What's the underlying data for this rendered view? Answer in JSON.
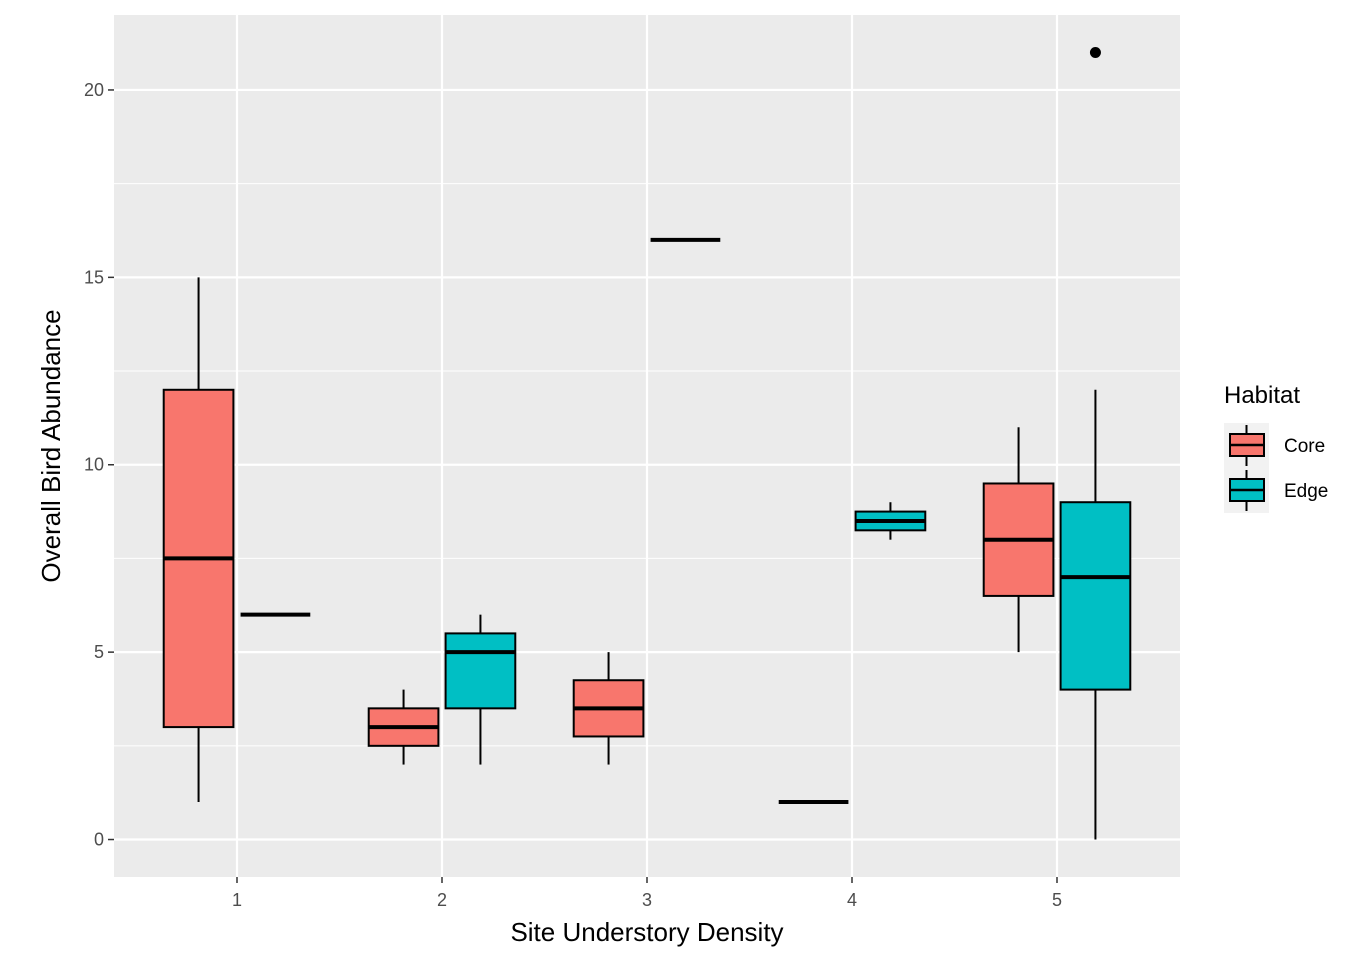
{
  "chart_data": {
    "type": "boxplot",
    "xlabel": "Site Understory Density",
    "ylabel": "Overall Bird Abundance",
    "categories": [
      "1",
      "2",
      "3",
      "4",
      "5"
    ],
    "y_ticks": [
      "0",
      "5",
      "10",
      "15",
      "20"
    ],
    "ylim": [
      -1,
      22
    ],
    "grid": true,
    "legend": {
      "title": "Habitat",
      "position": "right"
    },
    "series": [
      {
        "name": "Core",
        "color": "#F8766D",
        "boxes": [
          {
            "category": "1",
            "min": 1,
            "q1": 3,
            "median": 7.5,
            "q3": 12,
            "max": 15,
            "outliers": []
          },
          {
            "category": "2",
            "min": 2,
            "q1": 2.5,
            "median": 3,
            "q3": 3.5,
            "max": 4,
            "outliers": []
          },
          {
            "category": "3",
            "min": 2,
            "q1": 2.75,
            "median": 3.5,
            "q3": 4.25,
            "max": 5,
            "outliers": []
          },
          {
            "category": "4",
            "min": 1,
            "q1": 1,
            "median": 1,
            "q3": 1,
            "max": 1,
            "outliers": []
          },
          {
            "category": "5",
            "min": 5,
            "q1": 6.5,
            "median": 8,
            "q3": 9.5,
            "max": 11,
            "outliers": []
          }
        ]
      },
      {
        "name": "Edge",
        "color": "#00BFC4",
        "boxes": [
          {
            "category": "1",
            "min": 6,
            "q1": 6,
            "median": 6,
            "q3": 6,
            "max": 6,
            "outliers": []
          },
          {
            "category": "2",
            "min": 2,
            "q1": 3.5,
            "median": 5,
            "q3": 5.5,
            "max": 6,
            "outliers": []
          },
          {
            "category": "3",
            "min": 16,
            "q1": 16,
            "median": 16,
            "q3": 16,
            "max": 16,
            "outliers": []
          },
          {
            "category": "4",
            "min": 8,
            "q1": 8.25,
            "median": 8.5,
            "q3": 8.75,
            "max": 9,
            "outliers": []
          },
          {
            "category": "5",
            "min": 0,
            "q1": 4,
            "median": 7,
            "q3": 9,
            "max": 12,
            "outliers": [
              21
            ]
          }
        ]
      }
    ]
  }
}
